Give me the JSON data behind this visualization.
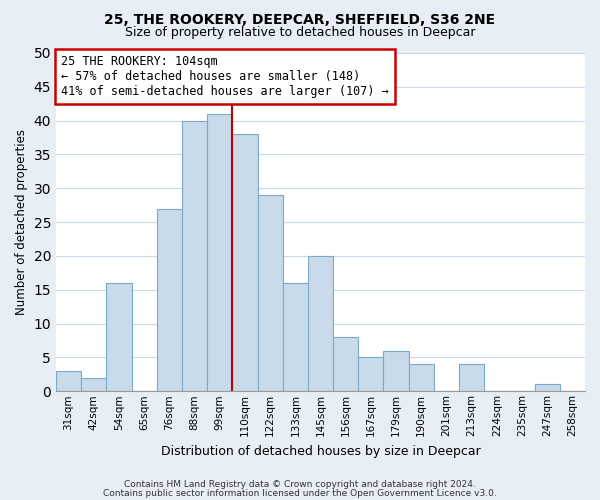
{
  "title": "25, THE ROOKERY, DEEPCAR, SHEFFIELD, S36 2NE",
  "subtitle": "Size of property relative to detached houses in Deepcar",
  "xlabel": "Distribution of detached houses by size in Deepcar",
  "ylabel": "Number of detached properties",
  "bar_labels": [
    "31sqm",
    "42sqm",
    "54sqm",
    "65sqm",
    "76sqm",
    "88sqm",
    "99sqm",
    "110sqm",
    "122sqm",
    "133sqm",
    "145sqm",
    "156sqm",
    "167sqm",
    "179sqm",
    "190sqm",
    "201sqm",
    "213sqm",
    "224sqm",
    "235sqm",
    "247sqm",
    "258sqm"
  ],
  "bar_values": [
    3,
    2,
    16,
    0,
    27,
    40,
    41,
    38,
    29,
    16,
    20,
    8,
    5,
    6,
    4,
    0,
    4,
    0,
    0,
    1,
    0
  ],
  "bar_color": "#c9daea",
  "bar_edge_color": "#7aaac8",
  "vline_x_index": 7,
  "vline_color": "#bb0000",
  "annotation_line1": "25 THE ROOKERY: 104sqm",
  "annotation_line2": "← 57% of detached houses are smaller (148)",
  "annotation_line3": "41% of semi-detached houses are larger (107) →",
  "annotation_box_color": "#ffffff",
  "annotation_box_edge": "#cc0000",
  "ylim": [
    0,
    50
  ],
  "yticks": [
    0,
    5,
    10,
    15,
    20,
    25,
    30,
    35,
    40,
    45,
    50
  ],
  "footer1": "Contains HM Land Registry data © Crown copyright and database right 2024.",
  "footer2": "Contains public sector information licensed under the Open Government Licence v3.0.",
  "fig_bg_color": "#e8eef5",
  "plot_bg_color": "#ffffff",
  "grid_color": "#c8d8e8",
  "title_fontsize": 10,
  "subtitle_fontsize": 9,
  "ylabel_fontsize": 8.5,
  "xlabel_fontsize": 9
}
